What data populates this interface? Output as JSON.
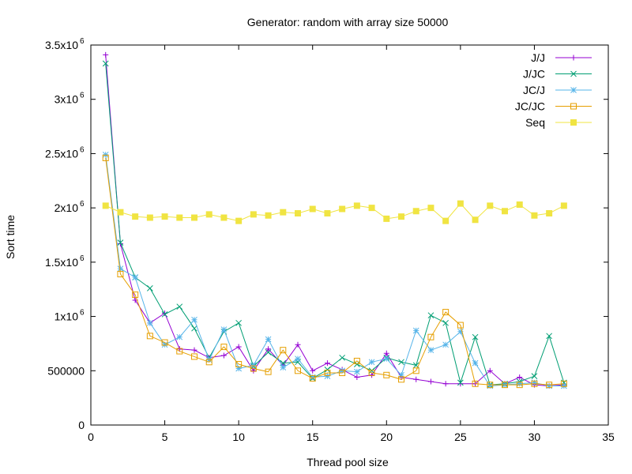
{
  "chart_data": {
    "type": "line",
    "title": "Generator: random with array size 50000",
    "xlabel": "Thread pool size",
    "ylabel": "Sort time",
    "xlim": [
      0,
      35
    ],
    "ylim": [
      0,
      3500000
    ],
    "grid": false,
    "legend_position": "top-right",
    "x_ticks": [
      {
        "value": 0,
        "label": "0"
      },
      {
        "value": 5,
        "label": "5"
      },
      {
        "value": 10,
        "label": "10"
      },
      {
        "value": 15,
        "label": "15"
      },
      {
        "value": 20,
        "label": "20"
      },
      {
        "value": 25,
        "label": "25"
      },
      {
        "value": 30,
        "label": "30"
      },
      {
        "value": 35,
        "label": "35"
      }
    ],
    "y_ticks": [
      {
        "value": 0,
        "label": "0",
        "exp": ""
      },
      {
        "value": 500000,
        "label": "500000",
        "exp": ""
      },
      {
        "value": 1000000,
        "label": "1x10",
        "exp": "6"
      },
      {
        "value": 1500000,
        "label": "1.5x10",
        "exp": "6"
      },
      {
        "value": 2000000,
        "label": "2x10",
        "exp": "6"
      },
      {
        "value": 2500000,
        "label": "2.5x10",
        "exp": "6"
      },
      {
        "value": 3000000,
        "label": "3x10",
        "exp": "6"
      },
      {
        "value": 3500000,
        "label": "3.5x10",
        "exp": "6"
      }
    ],
    "x": [
      1,
      2,
      3,
      4,
      5,
      6,
      7,
      8,
      9,
      10,
      11,
      12,
      13,
      14,
      15,
      16,
      17,
      18,
      19,
      20,
      21,
      22,
      23,
      24,
      25,
      26,
      27,
      28,
      29,
      30,
      31,
      32
    ],
    "series": [
      {
        "name": "J/J",
        "color": "#9400d3",
        "marker": "plus",
        "values": [
          3410000,
          1670000,
          1150000,
          940000,
          1030000,
          700000,
          690000,
          620000,
          640000,
          720000,
          500000,
          700000,
          550000,
          740000,
          500000,
          570000,
          510000,
          440000,
          460000,
          660000,
          440000,
          420000,
          400000,
          380000,
          380000,
          380000,
          500000,
          380000,
          440000,
          370000,
          360000,
          370000
        ]
      },
      {
        "name": "J/JC",
        "color": "#009e73",
        "marker": "cross",
        "values": [
          3330000,
          1680000,
          1360000,
          1260000,
          1020000,
          1090000,
          890000,
          620000,
          860000,
          940000,
          540000,
          670000,
          570000,
          580000,
          430000,
          510000,
          620000,
          560000,
          500000,
          620000,
          580000,
          550000,
          1010000,
          940000,
          390000,
          810000,
          370000,
          380000,
          400000,
          450000,
          820000,
          390000
        ]
      },
      {
        "name": "JC/J",
        "color": "#56b4e9",
        "marker": "star",
        "values": [
          2490000,
          1440000,
          1360000,
          940000,
          740000,
          810000,
          970000,
          600000,
          880000,
          520000,
          550000,
          790000,
          530000,
          610000,
          440000,
          450000,
          500000,
          490000,
          580000,
          610000,
          460000,
          870000,
          690000,
          740000,
          860000,
          570000,
          360000,
          370000,
          380000,
          390000,
          360000,
          360000
        ]
      },
      {
        "name": "JC/JC",
        "color": "#e69f00",
        "marker": "square-open",
        "values": [
          2460000,
          1390000,
          1200000,
          820000,
          760000,
          680000,
          630000,
          580000,
          720000,
          560000,
          520000,
          490000,
          690000,
          500000,
          430000,
          480000,
          480000,
          590000,
          480000,
          460000,
          420000,
          500000,
          810000,
          1040000,
          920000,
          380000,
          370000,
          370000,
          370000,
          380000,
          370000,
          380000
        ]
      },
      {
        "name": "Seq",
        "color": "#f0e442",
        "marker": "square-filled",
        "values": [
          2020000,
          1960000,
          1920000,
          1910000,
          1920000,
          1910000,
          1910000,
          1940000,
          1910000,
          1880000,
          1940000,
          1930000,
          1960000,
          1950000,
          1990000,
          1950000,
          1990000,
          2020000,
          2000000,
          1900000,
          1920000,
          1970000,
          2000000,
          1880000,
          2040000,
          1890000,
          2020000,
          1970000,
          2030000,
          1930000,
          1950000,
          2020000
        ]
      }
    ]
  }
}
